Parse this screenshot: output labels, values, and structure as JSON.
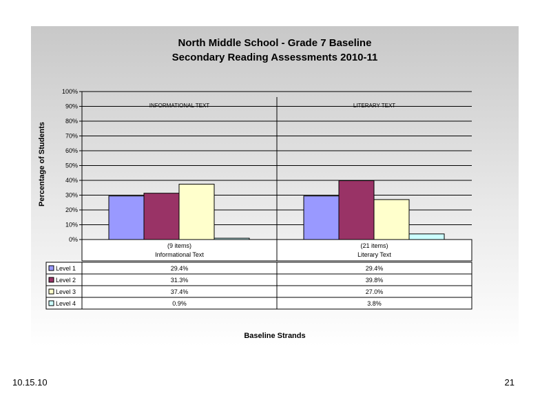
{
  "footer": {
    "date": "10.15.10",
    "page": "21"
  },
  "chart_data": {
    "type": "bar",
    "title": "North Middle School - Grade 7 Baseline",
    "subtitle": "Secondary Reading Assessments 2010-11",
    "ylabel": "Percentage of Students",
    "xlabel": "Baseline Strands",
    "ylim": [
      0,
      100
    ],
    "yticks": [
      "0%",
      "10%",
      "20%",
      "30%",
      "40%",
      "50%",
      "60%",
      "70%",
      "80%",
      "90%",
      "100%"
    ],
    "grid": true,
    "groups": [
      {
        "header": "INFORMATIONAL TEXT",
        "items": "(9 items)",
        "category": "Informational Text"
      },
      {
        "header": "LITERARY TEXT",
        "items": "(21 items)",
        "category": "Literary Text"
      }
    ],
    "series": [
      {
        "name": "Level 1",
        "color": "#9999ff",
        "values": [
          29.4,
          29.4
        ],
        "labels": [
          "29.4%",
          "29.4%"
        ]
      },
      {
        "name": "Level 2",
        "color": "#993366",
        "values": [
          31.3,
          39.8
        ],
        "labels": [
          "31.3%",
          "39.8%"
        ]
      },
      {
        "name": "Level 3",
        "color": "#ffffcc",
        "values": [
          37.4,
          27.0
        ],
        "labels": [
          "37.4%",
          "27.0%"
        ]
      },
      {
        "name": "Level 4",
        "color": "#ccffff",
        "values": [
          0.9,
          3.8
        ],
        "labels": [
          "0.9%",
          "3.8%"
        ]
      }
    ]
  }
}
